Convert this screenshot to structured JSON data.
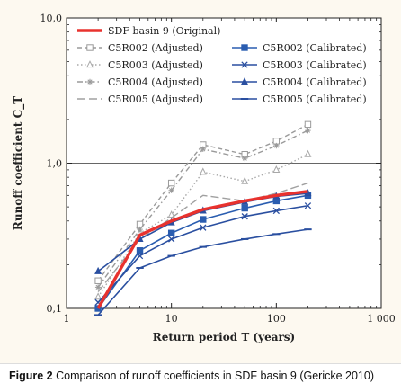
{
  "caption": {
    "label": "Figure 2",
    "text": "Comparison of runoff coefficients in SDF basin 9 (Gericke 2010)"
  },
  "chart_data": {
    "type": "line",
    "xlabel": "Return period T (years)",
    "ylabel": "Runoff coefficient C_T",
    "xscale": "log",
    "yscale": "log",
    "xlim": [
      1,
      1000
    ],
    "ylim": [
      0.1,
      10
    ],
    "xticks": [
      {
        "value": 1,
        "label": "1"
      },
      {
        "value": 10,
        "label": "10"
      },
      {
        "value": 100,
        "label": "100"
      },
      {
        "value": 1000,
        "label": "1 000"
      }
    ],
    "yticks": [
      {
        "value": 0.1,
        "label": "0,1"
      },
      {
        "value": 1,
        "label": "1,0"
      },
      {
        "value": 10,
        "label": "10,0"
      }
    ],
    "grid": "horizontal-at-1.0",
    "legend_position": "top",
    "x": [
      2,
      5,
      10,
      20,
      50,
      100,
      200
    ],
    "series": [
      {
        "name": "SDF basin 9 (Original)",
        "color": "#e8322e",
        "style": "solid-thick",
        "marker": "none",
        "values": [
          0.1,
          0.32,
          0.4,
          0.48,
          0.55,
          0.6,
          0.64
        ]
      },
      {
        "name": "C5R002 (Adjusted)",
        "color": "#9a9a9a",
        "style": "dashed",
        "marker": "open-square",
        "values": [
          0.155,
          0.38,
          0.73,
          1.34,
          1.15,
          1.42,
          1.85
        ]
      },
      {
        "name": "C5R003 (Adjusted)",
        "color": "#a8a8a8",
        "style": "dotted",
        "marker": "open-triangle",
        "values": [
          0.12,
          0.33,
          0.44,
          0.87,
          0.75,
          0.9,
          1.15
        ]
      },
      {
        "name": "C5R004 (Adjusted)",
        "color": "#9a9a9a",
        "style": "dash-dot",
        "marker": "star",
        "values": [
          0.14,
          0.35,
          0.65,
          1.25,
          1.08,
          1.32,
          1.68
        ]
      },
      {
        "name": "C5R005 (Adjusted)",
        "color": "#a0a0a0",
        "style": "long-dash",
        "marker": "none",
        "values": [
          0.13,
          0.3,
          0.42,
          0.6,
          0.55,
          0.62,
          0.73
        ]
      },
      {
        "name": "C5R002 (Calibrated)",
        "color": "#2a5db0",
        "style": "solid",
        "marker": "filled-square",
        "values": [
          0.1,
          0.25,
          0.33,
          0.41,
          0.49,
          0.55,
          0.6
        ]
      },
      {
        "name": "C5R003 (Calibrated)",
        "color": "#2a4fa0",
        "style": "solid",
        "marker": "x",
        "values": [
          0.11,
          0.23,
          0.3,
          0.36,
          0.43,
          0.47,
          0.51
        ]
      },
      {
        "name": "C5R004 (Calibrated)",
        "color": "#2a4fa0",
        "style": "solid",
        "marker": "filled-triangle",
        "values": [
          0.18,
          0.3,
          0.39,
          0.47,
          0.54,
          0.59,
          0.62
        ]
      },
      {
        "name": "C5R005 (Calibrated)",
        "color": "#2a4fa0",
        "style": "solid",
        "marker": "dash",
        "values": [
          0.09,
          0.19,
          0.23,
          0.265,
          0.3,
          0.325,
          0.35
        ]
      }
    ]
  }
}
